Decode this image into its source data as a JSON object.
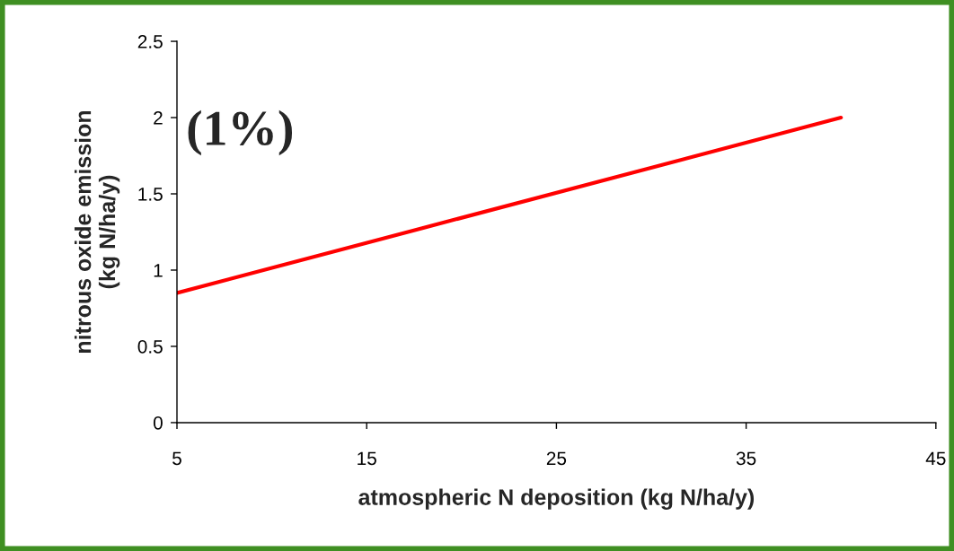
{
  "chart_data": {
    "type": "line",
    "xlabel": "atmospheric N deposition (kg N/ha/y)",
    "ylabel": "nitrous oxide emission\n(kg N/ha/y)",
    "x": [
      5,
      40
    ],
    "series": [
      {
        "color": "#ff0000",
        "values": [
          0.85,
          2.0
        ]
      }
    ],
    "xlim": [
      5,
      45
    ],
    "xticks": [
      5,
      15,
      25,
      35,
      45
    ],
    "ylim": [
      0,
      2.5
    ],
    "yticks": [
      0,
      0.5,
      1,
      1.5,
      2,
      2.5
    ],
    "annotations": [
      "(1%)"
    ],
    "grid": false,
    "legend": false,
    "marker": "none",
    "line_style": "solid"
  }
}
